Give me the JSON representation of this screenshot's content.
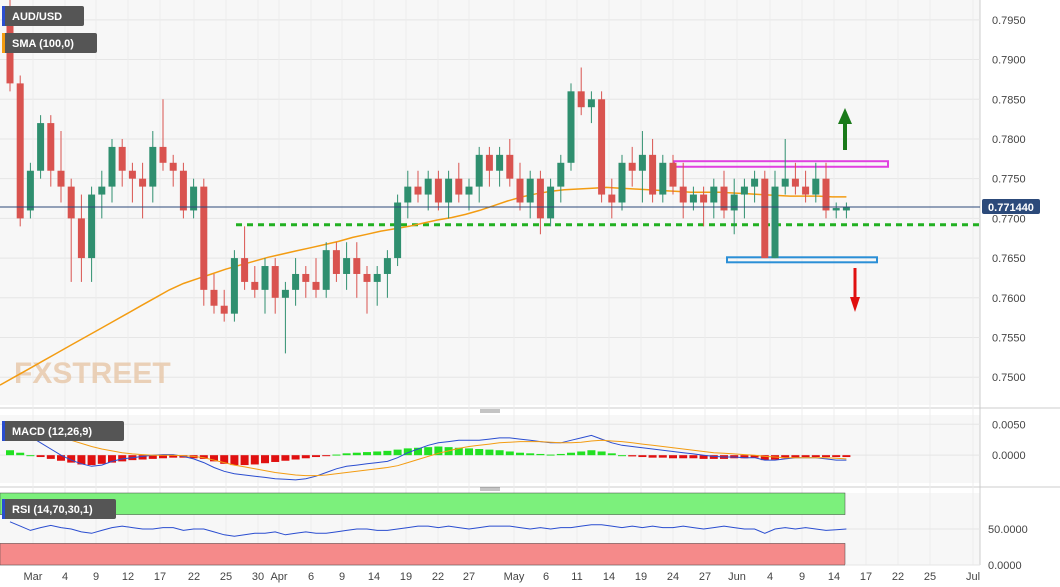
{
  "chart_data": {
    "type": "candlestick",
    "symbol": "AUD/USD",
    "indicator_sma_label": "SMA (100,0)",
    "current_price_label": "0.771440",
    "current_price": 0.77144,
    "y_ticks": [
      "0.7950",
      "0.7900",
      "0.7850",
      "0.7800",
      "0.7750",
      "0.7700",
      "0.7650",
      "0.7600",
      "0.7550",
      "0.7500"
    ],
    "ylim": [
      0.7465,
      0.7975
    ],
    "x_tick_labels": [
      "Mar",
      "4",
      "9",
      "12",
      "17",
      "22",
      "25",
      "30",
      "Apr",
      "6",
      "9",
      "14",
      "19",
      "22",
      "27",
      "May",
      "6",
      "11",
      "14",
      "19",
      "24",
      "27",
      "Jun",
      "4",
      "9",
      "14",
      "17",
      "22",
      "25",
      "Jul"
    ],
    "watermark": "FXSTREET",
    "candles": [
      [
        0.796,
        0.7975,
        0.786,
        0.787
      ],
      [
        0.787,
        0.788,
        0.769,
        0.77
      ],
      [
        0.771,
        0.777,
        0.77,
        0.776
      ],
      [
        0.776,
        0.783,
        0.775,
        0.782
      ],
      [
        0.782,
        0.783,
        0.774,
        0.776
      ],
      [
        0.776,
        0.781,
        0.772,
        0.774
      ],
      [
        0.774,
        0.775,
        0.762,
        0.77
      ],
      [
        0.77,
        0.773,
        0.762,
        0.765
      ],
      [
        0.765,
        0.774,
        0.762,
        0.773
      ],
      [
        0.773,
        0.776,
        0.77,
        0.774
      ],
      [
        0.774,
        0.78,
        0.772,
        0.779
      ],
      [
        0.779,
        0.78,
        0.774,
        0.776
      ],
      [
        0.776,
        0.777,
        0.772,
        0.775
      ],
      [
        0.775,
        0.777,
        0.77,
        0.774
      ],
      [
        0.774,
        0.781,
        0.772,
        0.779
      ],
      [
        0.779,
        0.785,
        0.776,
        0.777
      ],
      [
        0.777,
        0.778,
        0.774,
        0.776
      ],
      [
        0.776,
        0.777,
        0.77,
        0.771
      ],
      [
        0.771,
        0.775,
        0.77,
        0.774
      ],
      [
        0.774,
        0.775,
        0.759,
        0.761
      ],
      [
        0.761,
        0.763,
        0.758,
        0.759
      ],
      [
        0.759,
        0.761,
        0.757,
        0.758
      ],
      [
        0.758,
        0.766,
        0.757,
        0.765
      ],
      [
        0.765,
        0.769,
        0.761,
        0.762
      ],
      [
        0.762,
        0.764,
        0.76,
        0.761
      ],
      [
        0.761,
        0.765,
        0.758,
        0.764
      ],
      [
        0.764,
        0.765,
        0.758,
        0.76
      ],
      [
        0.76,
        0.762,
        0.753,
        0.761
      ],
      [
        0.761,
        0.765,
        0.759,
        0.763
      ],
      [
        0.763,
        0.764,
        0.76,
        0.762
      ],
      [
        0.762,
        0.765,
        0.76,
        0.761
      ],
      [
        0.761,
        0.767,
        0.76,
        0.766
      ],
      [
        0.766,
        0.767,
        0.762,
        0.763
      ],
      [
        0.763,
        0.767,
        0.761,
        0.765
      ],
      [
        0.765,
        0.767,
        0.76,
        0.763
      ],
      [
        0.763,
        0.764,
        0.758,
        0.762
      ],
      [
        0.762,
        0.764,
        0.759,
        0.763
      ],
      [
        0.763,
        0.766,
        0.76,
        0.765
      ],
      [
        0.765,
        0.773,
        0.764,
        0.772
      ],
      [
        0.772,
        0.776,
        0.77,
        0.774
      ],
      [
        0.774,
        0.776,
        0.772,
        0.773
      ],
      [
        0.773,
        0.776,
        0.771,
        0.775
      ],
      [
        0.775,
        0.776,
        0.771,
        0.772
      ],
      [
        0.772,
        0.776,
        0.77,
        0.775
      ],
      [
        0.775,
        0.777,
        0.772,
        0.773
      ],
      [
        0.773,
        0.775,
        0.771,
        0.774
      ],
      [
        0.774,
        0.779,
        0.772,
        0.778
      ],
      [
        0.778,
        0.779,
        0.774,
        0.776
      ],
      [
        0.776,
        0.779,
        0.774,
        0.778
      ],
      [
        0.778,
        0.78,
        0.774,
        0.775
      ],
      [
        0.775,
        0.777,
        0.771,
        0.772
      ],
      [
        0.772,
        0.776,
        0.77,
        0.775
      ],
      [
        0.775,
        0.776,
        0.768,
        0.77
      ],
      [
        0.77,
        0.775,
        0.769,
        0.774
      ],
      [
        0.774,
        0.778,
        0.772,
        0.777
      ],
      [
        0.777,
        0.787,
        0.776,
        0.786
      ],
      [
        0.786,
        0.789,
        0.783,
        0.784
      ],
      [
        0.784,
        0.786,
        0.782,
        0.785
      ],
      [
        0.785,
        0.786,
        0.772,
        0.773
      ],
      [
        0.773,
        0.775,
        0.77,
        0.772
      ],
      [
        0.772,
        0.778,
        0.771,
        0.777
      ],
      [
        0.777,
        0.779,
        0.774,
        0.776
      ],
      [
        0.776,
        0.781,
        0.772,
        0.778
      ],
      [
        0.778,
        0.78,
        0.772,
        0.773
      ],
      [
        0.773,
        0.778,
        0.772,
        0.777
      ],
      [
        0.777,
        0.778,
        0.773,
        0.774
      ],
      [
        0.774,
        0.777,
        0.77,
        0.772
      ],
      [
        0.772,
        0.774,
        0.771,
        0.773
      ],
      [
        0.773,
        0.774,
        0.769,
        0.772
      ],
      [
        0.772,
        0.775,
        0.77,
        0.774
      ],
      [
        0.774,
        0.776,
        0.77,
        0.771
      ],
      [
        0.771,
        0.775,
        0.768,
        0.773
      ],
      [
        0.773,
        0.775,
        0.77,
        0.774
      ],
      [
        0.774,
        0.776,
        0.772,
        0.775
      ],
      [
        0.775,
        0.776,
        0.765,
        0.765
      ],
      [
        0.765,
        0.776,
        0.765,
        0.774
      ],
      [
        0.774,
        0.78,
        0.773,
        0.775
      ],
      [
        0.775,
        0.777,
        0.773,
        0.774
      ],
      [
        0.774,
        0.776,
        0.772,
        0.773
      ],
      [
        0.773,
        0.777,
        0.772,
        0.775
      ],
      [
        0.775,
        0.777,
        0.77,
        0.771
      ],
      [
        0.771,
        0.772,
        0.77,
        0.7713
      ],
      [
        0.771,
        0.772,
        0.77,
        0.7714
      ]
    ],
    "sma": [
      0.749,
      0.75,
      0.751,
      0.752,
      0.753,
      0.754,
      0.755,
      0.756,
      0.757,
      0.758,
      0.759,
      0.76,
      0.761,
      0.7618,
      0.7624,
      0.763,
      0.7636,
      0.7641,
      0.7646,
      0.7651,
      0.7655,
      0.7659,
      0.7663,
      0.7667,
      0.7671,
      0.7676,
      0.768,
      0.7684,
      0.7687,
      0.769,
      0.7694,
      0.7698,
      0.7701,
      0.7705,
      0.771,
      0.7716,
      0.7722,
      0.7727,
      0.7731,
      0.7734,
      0.7736,
      0.7737,
      0.7738,
      0.7739,
      0.7738,
      0.7737,
      0.7736,
      0.7735,
      0.7734,
      0.7733,
      0.7733,
      0.7733,
      0.7732,
      0.7731,
      0.773,
      0.7729,
      0.7728,
      0.7728,
      0.7728,
      0.7727,
      0.7727
    ],
    "sma_start_index": 0,
    "macd": {
      "label": "MACD (12,26,9)",
      "y_ticks": [
        "0.0050",
        "0.0000"
      ],
      "ylim": [
        -0.0045,
        0.0065
      ],
      "hist": [
        0.0008,
        0.0004,
        0.0,
        -0.0003,
        -0.0006,
        -0.0009,
        -0.0012,
        -0.0015,
        -0.0016,
        -0.0014,
        -0.0012,
        -0.001,
        -0.0008,
        -0.0007,
        -0.0006,
        -0.0005,
        -0.0004,
        -0.0004,
        -0.0005,
        -0.0006,
        -0.001,
        -0.0014,
        -0.0016,
        -0.0016,
        -0.0015,
        -0.0013,
        -0.0011,
        -0.0009,
        -0.0007,
        -0.0005,
        -0.0003,
        -0.0001,
        0.0001,
        0.0003,
        0.0004,
        0.0005,
        0.0006,
        0.0007,
        0.0009,
        0.0011,
        0.0012,
        0.0013,
        0.0014,
        0.0013,
        0.0012,
        0.0011,
        0.001,
        0.0009,
        0.0008,
        0.0006,
        0.0004,
        0.0003,
        0.0002,
        0.0001,
        0.0002,
        0.0004,
        0.0006,
        0.0008,
        0.0006,
        0.0003,
        0.0,
        -0.0002,
        -0.0003,
        -0.0004,
        -0.0004,
        -0.0005,
        -0.0005,
        -0.0005,
        -0.0006,
        -0.0006,
        -0.0006,
        -0.0005,
        -0.0005,
        -0.0004,
        -0.0008,
        -0.0007,
        -0.0005,
        -0.0004,
        -0.0003,
        -0.0003,
        -0.0003,
        -0.0003,
        -0.0003
      ],
      "macd_line": [
        0.005,
        0.004,
        0.003,
        0.002,
        0.001,
        0.0,
        -0.0008,
        -0.0014,
        -0.0018,
        -0.0016,
        -0.001,
        -0.0006,
        -0.0004,
        -0.0002,
        0.0,
        0.0001,
        0.0001,
        -0.0002,
        -0.0006,
        -0.0012,
        -0.002,
        -0.0026,
        -0.003,
        -0.0032,
        -0.0034,
        -0.0036,
        -0.0038,
        -0.0039,
        -0.004,
        -0.0038,
        -0.0034,
        -0.0028,
        -0.0022,
        -0.0018,
        -0.0016,
        -0.0014,
        -0.0012,
        -0.001,
        -0.0004,
        0.0004,
        0.001,
        0.0016,
        0.002,
        0.0022,
        0.0024,
        0.0024,
        0.0024,
        0.0026,
        0.0028,
        0.0028,
        0.0026,
        0.0024,
        0.0022,
        0.002,
        0.002,
        0.0024,
        0.0028,
        0.0032,
        0.0026,
        0.002,
        0.0016,
        0.0014,
        0.0012,
        0.001,
        0.0008,
        0.0006,
        0.0004,
        0.0002,
        0.0,
        -0.0002,
        -0.0003,
        -0.0003,
        -0.0004,
        -0.0004,
        -0.0008,
        -0.0008,
        -0.0006,
        -0.0004,
        -0.0004,
        -0.0004,
        -0.0006,
        -0.0008,
        -0.0008
      ],
      "signal_line": [
        0.0042,
        0.0041,
        0.0039,
        0.0036,
        0.0033,
        0.0029,
        0.0024,
        0.0019,
        0.0014,
        0.001,
        0.0007,
        0.0004,
        0.0002,
        0.0001,
        0.0,
        0.0,
        0.0,
        -0.0001,
        -0.0002,
        -0.0004,
        -0.0008,
        -0.0012,
        -0.0016,
        -0.0019,
        -0.0022,
        -0.0025,
        -0.0028,
        -0.003,
        -0.0032,
        -0.0033,
        -0.0033,
        -0.0032,
        -0.003,
        -0.0028,
        -0.0026,
        -0.0024,
        -0.0022,
        -0.002,
        -0.0017,
        -0.0012,
        -0.0007,
        -0.0002,
        0.0003,
        0.0007,
        0.0011,
        0.0014,
        0.0016,
        0.0018,
        0.002,
        0.0021,
        0.0022,
        0.0022,
        0.0022,
        0.0021,
        0.002,
        0.002,
        0.0021,
        0.0023,
        0.0024,
        0.0023,
        0.0022,
        0.002,
        0.0018,
        0.0016,
        0.0014,
        0.0012,
        0.001,
        0.0008,
        0.0006,
        0.0004,
        0.0003,
        0.0002,
        0.0001,
        0.0,
        -0.0002,
        -0.0003,
        -0.0004,
        -0.0004,
        -0.0004,
        -0.0004,
        -0.0004,
        -0.0005,
        -0.0006
      ]
    },
    "rsi": {
      "label": "RSI (14,70,30,1)",
      "y_ticks": [
        "50.0000",
        "0.0000"
      ],
      "ylim": [
        0,
        100
      ],
      "overbought": 70,
      "oversold": 30,
      "values": [
        60,
        54,
        48,
        52,
        55,
        52,
        50,
        46,
        44,
        48,
        52,
        54,
        52,
        50,
        50,
        52,
        52,
        48,
        50,
        50,
        46,
        42,
        40,
        42,
        44,
        44,
        46,
        42,
        44,
        46,
        44,
        44,
        46,
        48,
        50,
        50,
        48,
        48,
        50,
        52,
        54,
        54,
        52,
        54,
        52,
        50,
        52,
        54,
        54,
        54,
        52,
        50,
        52,
        50,
        52,
        52,
        54,
        56,
        56,
        54,
        52,
        54,
        52,
        54,
        52,
        52,
        54,
        52,
        50,
        52,
        54,
        52,
        50,
        50,
        44,
        50,
        52,
        50,
        52,
        50,
        48,
        49,
        50
      ]
    },
    "annotations": {
      "support_dotted_level": 0.7692,
      "resistance_box": [
        0.7765,
        0.7772
      ],
      "support_box": [
        0.7645,
        0.7651
      ]
    }
  }
}
